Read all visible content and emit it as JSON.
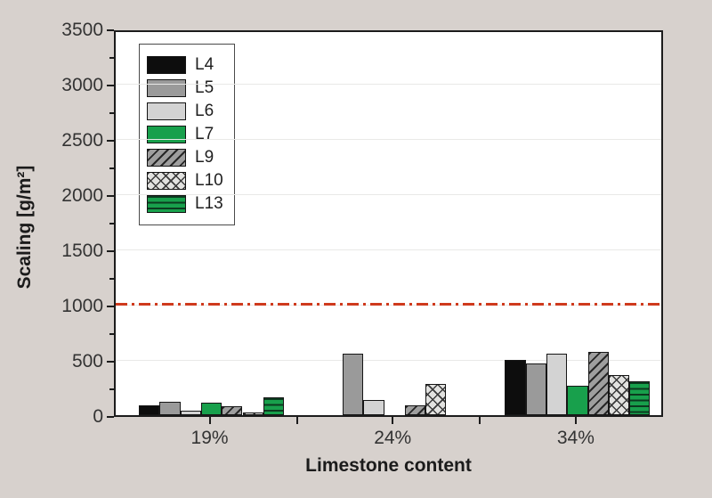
{
  "chart_data": {
    "type": "bar",
    "title": "",
    "xlabel": "Limestone content",
    "ylabel": "Scaling [g/m²]",
    "categories": [
      "19%",
      "24%",
      "34%"
    ],
    "series": [
      {
        "name": "L4",
        "pattern": "solid",
        "color": "#0d0d0d",
        "values": [
          90,
          0,
          500
        ]
      },
      {
        "name": "L5",
        "pattern": "solid",
        "color": "#9a9a9a",
        "values": [
          120,
          560,
          470
        ]
      },
      {
        "name": "L6",
        "pattern": "solid",
        "color": "#d3d3d3",
        "values": [
          40,
          140,
          560
        ]
      },
      {
        "name": "L7",
        "pattern": "solid",
        "color": "#18a04c",
        "values": [
          110,
          0,
          270
        ]
      },
      {
        "name": "L9",
        "pattern": "diagonal-hatch",
        "color": "#9e9e9e",
        "values": [
          80,
          90,
          570
        ]
      },
      {
        "name": "L10",
        "pattern": "cross-hatch",
        "color": "#e2e2e0",
        "values": [
          25,
          280,
          365
        ]
      },
      {
        "name": "L13",
        "pattern": "horizontal-stripes",
        "color": "#18a04c",
        "values": [
          160,
          0,
          310
        ]
      }
    ],
    "ylim": [
      0,
      3500
    ],
    "y_ticks": [
      0,
      500,
      1000,
      1500,
      2000,
      2500,
      3000,
      3500
    ],
    "y_minor_step": 250,
    "grid": "horizontal-major",
    "legend_position": "top-left-inside",
    "legend_entries": [
      "L4",
      "L5",
      "L6",
      "L7",
      "L9",
      "L10",
      "L13"
    ],
    "reference_line": {
      "value": 1000,
      "style": "dash-dot",
      "color": "#cf3a1d"
    }
  },
  "colors": {
    "page_background": "#d7d1cd",
    "plot_background": "#ffffff",
    "axis_frame": "#1c1c1c",
    "gridline": "#e9e9e7",
    "reference_line": "#cf3a1d"
  }
}
